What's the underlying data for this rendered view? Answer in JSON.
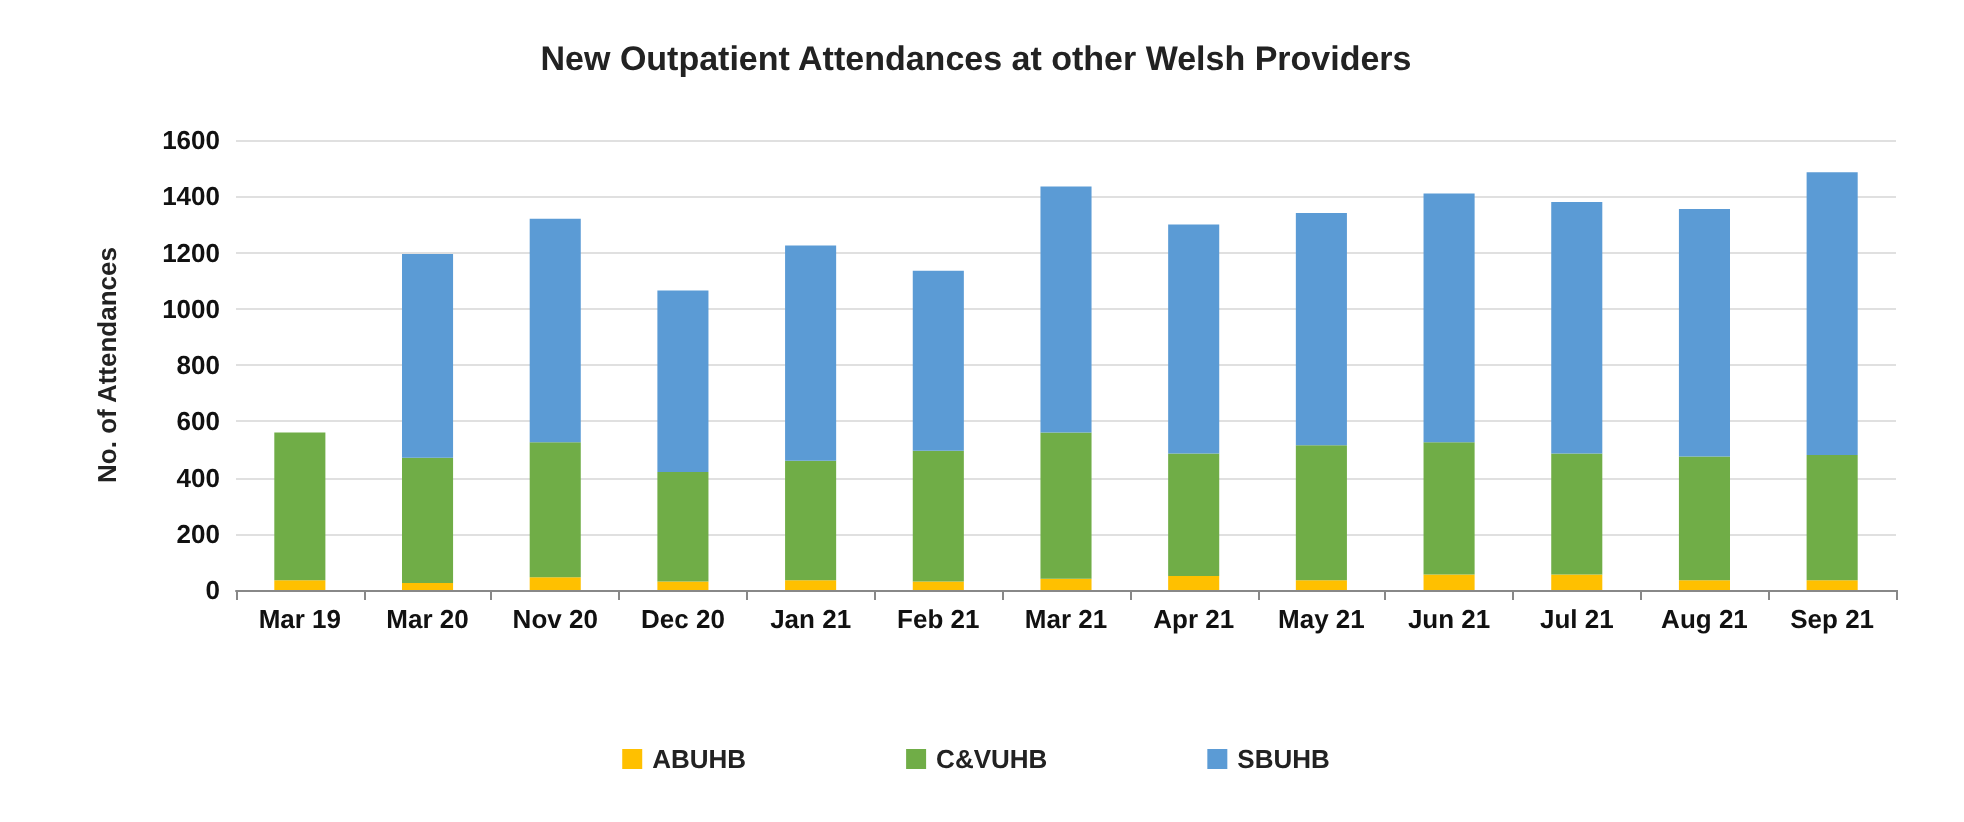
{
  "chart_data": {
    "type": "bar",
    "title": "New Outpatient Attendances at other Welsh Providers",
    "ylabel": "No. of Attendances",
    "categories": [
      "Mar 19",
      "Mar 20",
      "Nov 20",
      "Dec 20",
      "Jan 21",
      "Feb 21",
      "Mar 21",
      "Apr 21",
      "May 21",
      "Jun 21",
      "Jul 21",
      "Aug 21",
      "Sep 21"
    ],
    "stacked": true,
    "ylim": [
      0,
      1600
    ],
    "yticks": [
      0,
      200,
      400,
      600,
      800,
      1000,
      1200,
      1400,
      1600
    ],
    "grid": "y",
    "legend": "bottom",
    "series": [
      {
        "name": "ABUHB",
        "color": "#ffc000",
        "values": [
          35,
          25,
          45,
          30,
          35,
          30,
          40,
          50,
          35,
          55,
          55,
          35,
          35
        ]
      },
      {
        "name": "C&VUHB",
        "color": "#70ad47",
        "values": [
          525,
          445,
          480,
          390,
          425,
          465,
          520,
          435,
          480,
          470,
          430,
          440,
          445
        ]
      },
      {
        "name": "SBUHB",
        "color": "#5b9bd5",
        "values": [
          null,
          725,
          795,
          645,
          765,
          640,
          875,
          815,
          825,
          885,
          895,
          880,
          1005
        ]
      }
    ]
  }
}
